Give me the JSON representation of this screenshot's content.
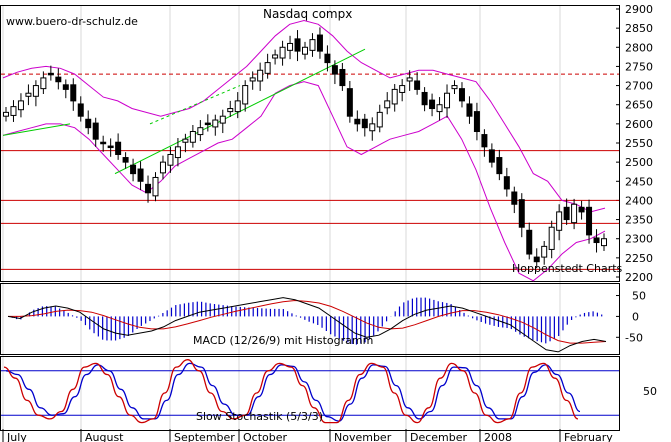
{
  "watermark": "www.buero-dr-schulz.de",
  "colors": {
    "background": "#ffffff",
    "bollinger": "#cc00cc",
    "resistance": "#cc0000",
    "trend_green": "#00cc00",
    "candle": "#000000",
    "histogram": "#0000cc",
    "macd_signal": "#cc0000",
    "macd_line": "#000000",
    "stoch_k": "#cc0000",
    "stoch_d": "#0000cc"
  },
  "chart_data": [
    {
      "type": "candlestick",
      "title": "Nasdaq compx",
      "annotation": "Hoppenstedt Charts",
      "ylim": [
        2200,
        2900
      ],
      "y_ticks": [
        "2200",
        "2250",
        "2300",
        "2350",
        "2400",
        "2450",
        "2500",
        "2550",
        "2600",
        "2650",
        "2700",
        "2750",
        "2800",
        "2850",
        "2900"
      ],
      "horizontal_lines": [
        2730,
        2530,
        2400,
        2340,
        2220
      ],
      "dashed_line": 2730,
      "x_labels": [
        "July",
        "August",
        "September",
        "October",
        "November",
        "December",
        "2008",
        "February"
      ],
      "close_series": [
        2630,
        2645,
        2660,
        2680,
        2700,
        2720,
        2730,
        2710,
        2690,
        2660,
        2620,
        2590,
        2560,
        2550,
        2540,
        2520,
        2500,
        2470,
        2450,
        2420,
        2460,
        2500,
        2520,
        2540,
        2560,
        2580,
        2590,
        2600,
        2610,
        2620,
        2640,
        2660,
        2700,
        2720,
        2740,
        2760,
        2780,
        2800,
        2810,
        2790,
        2800,
        2820,
        2790,
        2760,
        2730,
        2700,
        2620,
        2600,
        2590,
        2600,
        2630,
        2660,
        2690,
        2700,
        2720,
        2690,
        2650,
        2640,
        2650,
        2680,
        2700,
        2660,
        2620,
        2580,
        2540,
        2500,
        2470,
        2430,
        2390,
        2330,
        2260,
        2240,
        2280,
        2330,
        2370,
        2350,
        2390,
        2370,
        2310,
        2290,
        2300
      ],
      "bollinger_upper": [
        2720,
        2735,
        2745,
        2750,
        2745,
        2730,
        2700,
        2670,
        2660,
        2640,
        2630,
        2620,
        2630,
        2640,
        2660,
        2690,
        2720,
        2750,
        2790,
        2830,
        2860,
        2870,
        2860,
        2830,
        2790,
        2760,
        2740,
        2720,
        2730,
        2740,
        2740,
        2730,
        2720,
        2710,
        2660,
        2600,
        2540,
        2470,
        2450,
        2400,
        2390,
        2370,
        2380
      ],
      "bollinger_lower": [
        2570,
        2580,
        2590,
        2600,
        2600,
        2590,
        2560,
        2520,
        2480,
        2440,
        2420,
        2450,
        2490,
        2510,
        2530,
        2550,
        2560,
        2590,
        2620,
        2680,
        2700,
        2710,
        2700,
        2620,
        2540,
        2520,
        2540,
        2560,
        2570,
        2580,
        2600,
        2620,
        2560,
        2480,
        2380,
        2290,
        2210,
        2190,
        2220,
        2260,
        2290,
        2300,
        2320
      ],
      "trend_line": [
        [
          0.05,
          2640
        ],
        [
          0.6,
          2800
        ]
      ]
    },
    {
      "type": "line",
      "title": "MACD (12/26/9) mit Histogramm",
      "ylim": [
        -90,
        80
      ],
      "y_ticks": [
        "50",
        "0",
        "-50"
      ],
      "macd": [
        0,
        -5,
        10,
        20,
        25,
        20,
        10,
        -10,
        -30,
        -40,
        -45,
        -40,
        -35,
        -25,
        -10,
        0,
        10,
        15,
        20,
        25,
        30,
        35,
        40,
        45,
        40,
        30,
        20,
        0,
        -20,
        -40,
        -50,
        -45,
        -30,
        -10,
        5,
        15,
        20,
        25,
        20,
        10,
        0,
        -10,
        -20,
        -40,
        -60,
        -80,
        -85,
        -70,
        -60,
        -55,
        -60
      ],
      "signal": [
        0,
        0,
        2,
        6,
        12,
        15,
        14,
        10,
        2,
        -8,
        -18,
        -26,
        -30,
        -30,
        -25,
        -18,
        -10,
        -2,
        5,
        12,
        18,
        24,
        30,
        35,
        38,
        36,
        32,
        24,
        12,
        -2,
        -16,
        -26,
        -30,
        -28,
        -20,
        -10,
        0,
        8,
        14,
        14,
        10,
        4,
        -4,
        -14,
        -28,
        -44,
        -58,
        -64,
        -64,
        -62,
        -60
      ]
    },
    {
      "type": "line",
      "title": "Slow Stochastik (5/3/3)",
      "ylim": [
        0,
        100
      ],
      "y_ticks": [
        "50"
      ],
      "upper_band": 80,
      "lower_band": 20,
      "k": [
        85,
        70,
        40,
        20,
        15,
        25,
        55,
        85,
        90,
        75,
        45,
        20,
        10,
        15,
        50,
        85,
        95,
        80,
        50,
        25,
        15,
        20,
        50,
        80,
        90,
        85,
        60,
        30,
        10,
        10,
        40,
        75,
        90,
        85,
        50,
        20,
        10,
        30,
        70,
        90,
        80,
        50,
        20,
        10,
        15,
        50,
        85,
        90,
        70,
        40,
        15
      ],
      "d": [
        80,
        75,
        55,
        30,
        20,
        22,
        45,
        75,
        88,
        80,
        55,
        30,
        15,
        15,
        40,
        75,
        90,
        85,
        60,
        35,
        20,
        20,
        45,
        75,
        88,
        86,
        65,
        40,
        18,
        12,
        35,
        70,
        88,
        86,
        60,
        30,
        15,
        25,
        60,
        85,
        84,
        60,
        30,
        15,
        15,
        45,
        78,
        88,
        75,
        50,
        25
      ]
    }
  ]
}
